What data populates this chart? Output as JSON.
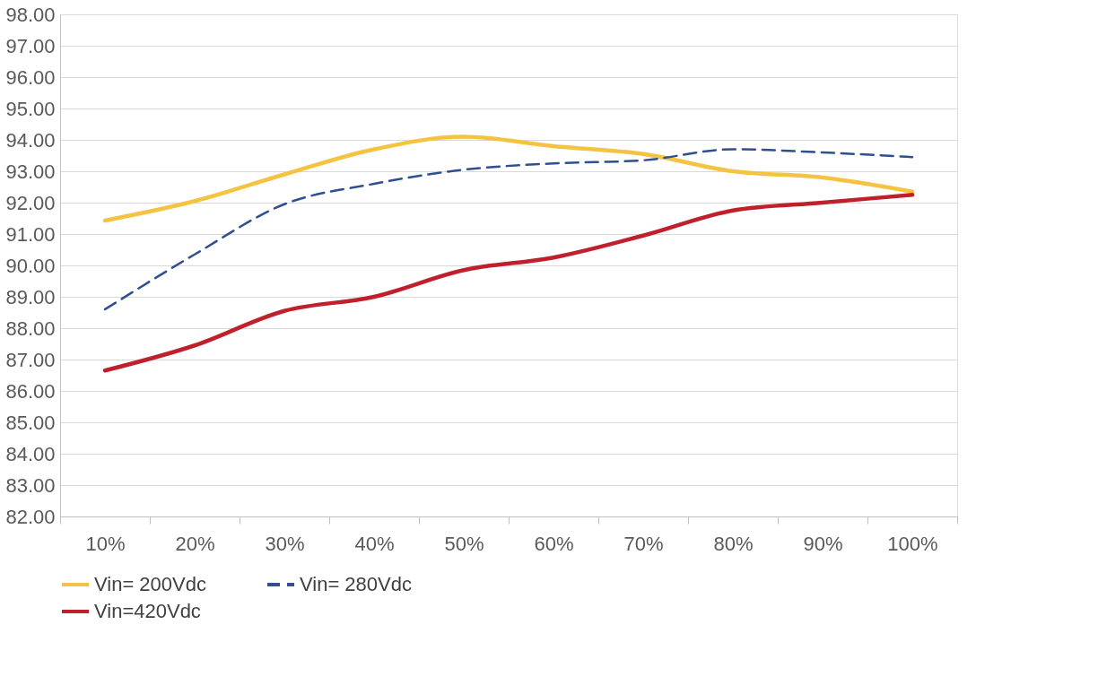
{
  "chart_data": {
    "type": "line",
    "categories": [
      "10%",
      "20%",
      "30%",
      "40%",
      "50%",
      "60%",
      "70%",
      "80%",
      "90%",
      "100%"
    ],
    "series": [
      {
        "name": "Vin= 200Vdc",
        "color": "#f5c342",
        "line_style": "solid",
        "values": [
          91.43,
          92.05,
          92.9,
          93.7,
          94.1,
          93.8,
          93.55,
          93.0,
          92.8,
          92.35
        ]
      },
      {
        "name": "Vin= 280Vdc",
        "color": "#2f4f8f",
        "line_style": "dashed",
        "values": [
          88.6,
          90.35,
          91.95,
          92.6,
          93.05,
          93.25,
          93.35,
          93.7,
          93.6,
          93.45
        ]
      },
      {
        "name": "Vin=420Vdc",
        "color": "#c0202c",
        "line_style": "solid",
        "values": [
          86.65,
          87.45,
          88.55,
          89.0,
          89.85,
          90.25,
          90.95,
          91.75,
          92.0,
          92.25
        ]
      }
    ],
    "ylim": [
      82,
      98
    ],
    "yticks": [
      {
        "value": 82,
        "label": "82.00"
      },
      {
        "value": 83,
        "label": "83.00"
      },
      {
        "value": 84,
        "label": "84.00"
      },
      {
        "value": 85,
        "label": "85.00"
      },
      {
        "value": 86,
        "label": "86.00"
      },
      {
        "value": 87,
        "label": "87.00"
      },
      {
        "value": 88,
        "label": "88.00"
      },
      {
        "value": 89,
        "label": "89.00"
      },
      {
        "value": 90,
        "label": "90.00"
      },
      {
        "value": 91,
        "label": "91.00"
      },
      {
        "value": 92,
        "label": "92.00"
      },
      {
        "value": 93,
        "label": "93.00"
      },
      {
        "value": 94,
        "label": "94.00"
      },
      {
        "value": 95,
        "label": "95.00"
      },
      {
        "value": 96,
        "label": "96.00"
      },
      {
        "value": 97,
        "label": "97.00"
      },
      {
        "value": 98,
        "label": "98.00"
      }
    ],
    "grid": "y",
    "legend": "bottom",
    "marker": "none"
  }
}
